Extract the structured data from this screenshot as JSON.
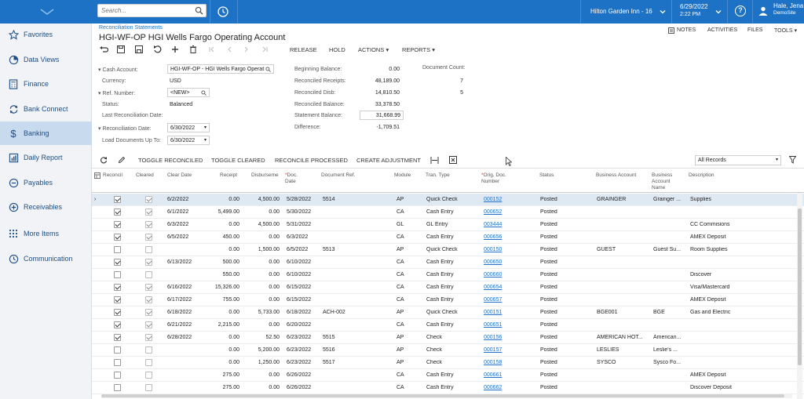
{
  "topbar": {
    "search_placeholder": "Search...",
    "branch": "Hilton Garden Inn - 16",
    "date": "6/29/2022",
    "time": "2:22 PM",
    "user_name": "Hale, Jena",
    "company": "DemoSite"
  },
  "sidebar": {
    "items": [
      {
        "label": "Favorites",
        "icon": "star-icon"
      },
      {
        "label": "Data Views",
        "icon": "chart-pie-icon"
      },
      {
        "label": "Finance",
        "icon": "calculator-icon"
      },
      {
        "label": "Bank Connect",
        "icon": "sync-icon"
      },
      {
        "label": "Banking",
        "icon": "dollar-icon"
      },
      {
        "label": "Daily Report",
        "icon": "report-icon"
      },
      {
        "label": "Payables",
        "icon": "minus-circle-icon"
      },
      {
        "label": "Receivables",
        "icon": "plus-circle-icon"
      },
      {
        "label": "More Items",
        "icon": "grid-icon"
      },
      {
        "label": "Communication",
        "icon": "clock-icon"
      }
    ]
  },
  "page": {
    "breadcrumb": "Reconciliation Statements",
    "title": "HGI-WF-OP HGI Wells Fargo Operating Account",
    "top_tools": {
      "notes": "NOTES",
      "activities": "ACTIVITIES",
      "files": "FILES",
      "tools": "TOOLS"
    },
    "toolbar": {
      "release": "RELEASE",
      "hold": "HOLD",
      "actions": "ACTIONS",
      "reports": "REPORTS"
    }
  },
  "form": {
    "cash_account_label": "Cash Account:",
    "cash_account_value": "HGI-WF-OP - HGI Wells Fargo Operat",
    "currency_label": "Currency:",
    "currency_value": "USD",
    "ref_number_label": "Ref. Number:",
    "ref_number_value": "<NEW>",
    "status_label": "Status:",
    "status_value": "Balanced",
    "last_recon_label": "Last Reconciliation Date:",
    "recon_date_label": "Reconciliation Date:",
    "recon_date_value": "6/30/2022",
    "load_docs_label": "Load Documents Up To:",
    "load_docs_value": "6/30/2022",
    "beginning_balance_label": "Beginning Balance:",
    "beginning_balance_value": "0.00",
    "reconciled_receipts_label": "Reconciled Receipts:",
    "reconciled_receipts_value": "48,189.00",
    "reconciled_disb_label": "Reconciled Disb:",
    "reconciled_disb_value": "14,810.50",
    "reconciled_balance_label": "Reconciled Balance:",
    "reconciled_balance_value": "33,378.50",
    "statement_balance_label": "Statement Balance:",
    "statement_balance_value": "31,668.99",
    "difference_label": "Difference:",
    "difference_value": "-1,709.51",
    "document_count_label": "Document Count:",
    "document_count_1": "7",
    "document_count_2": "5"
  },
  "grid_toolbar": {
    "toggle_reconciled": "TOGGLE RECONCILED",
    "toggle_cleared": "TOGGLE CLEARED",
    "reconcile_processed": "RECONCILE PROCESSED",
    "create_adjustment": "CREATE ADJUSTMENT",
    "filter_value": "All Records"
  },
  "grid": {
    "headers": {
      "reconcil": "Reconcil",
      "cleared": "Cleared",
      "clear_date": "Clear Date",
      "receipt": "Receipt",
      "disburseme": "Disburseme",
      "doc_date": "Doc. Date",
      "document_ref": "Document Ref.",
      "module": "Module",
      "tran_type": "Tran. Type",
      "orig_doc_number": "Orig. Doc. Number",
      "status": "Status",
      "business_account": "Business Account",
      "business_account_name": "Business Account Name",
      "description": "Description"
    },
    "rows": [
      {
        "rec": true,
        "clr": true,
        "clear_date": "6/2/2022",
        "receipt": "0.00",
        "disb": "4,500.00",
        "doc_date": "5/28/2022",
        "doc_ref": "5514",
        "module": "AP",
        "tran": "Quick Check",
        "orig": "000152",
        "status": "Posted",
        "bacct": "GRAINGER",
        "bname": "Grainger ...",
        "desc": "Supplies"
      },
      {
        "rec": true,
        "clr": true,
        "clear_date": "6/1/2022",
        "receipt": "5,499.00",
        "disb": "0.00",
        "doc_date": "5/30/2022",
        "doc_ref": "",
        "module": "CA",
        "tran": "Cash Entry",
        "orig": "000652",
        "status": "Posted",
        "bacct": "",
        "bname": "",
        "desc": ""
      },
      {
        "rec": true,
        "clr": true,
        "clear_date": "6/3/2022",
        "receipt": "0.00",
        "disb": "4,500.00",
        "doc_date": "5/31/2022",
        "doc_ref": "",
        "module": "GL",
        "tran": "GL Entry",
        "orig": "003444",
        "status": "Posted",
        "bacct": "",
        "bname": "",
        "desc": "CC Commisions"
      },
      {
        "rec": true,
        "clr": true,
        "clear_date": "6/5/2022",
        "receipt": "450.00",
        "disb": "0.00",
        "doc_date": "6/3/2022",
        "doc_ref": "",
        "module": "CA",
        "tran": "Cash Entry",
        "orig": "000656",
        "status": "Posted",
        "bacct": "",
        "bname": "",
        "desc": "AMEX Deposit"
      },
      {
        "rec": false,
        "clr": false,
        "clear_date": "",
        "receipt": "0.00",
        "disb": "1,500.00",
        "doc_date": "6/5/2022",
        "doc_ref": "5513",
        "module": "AP",
        "tran": "Quick Check",
        "orig": "000150",
        "status": "Posted",
        "bacct": "GUEST",
        "bname": "Guest Su...",
        "desc": "Room Supplies"
      },
      {
        "rec": true,
        "clr": true,
        "clear_date": "6/13/2022",
        "receipt": "500.00",
        "disb": "0.00",
        "doc_date": "6/10/2022",
        "doc_ref": "",
        "module": "CA",
        "tran": "Cash Entry",
        "orig": "000650",
        "status": "Posted",
        "bacct": "",
        "bname": "",
        "desc": ""
      },
      {
        "rec": false,
        "clr": false,
        "clear_date": "",
        "receipt": "550.00",
        "disb": "0.00",
        "doc_date": "6/10/2022",
        "doc_ref": "",
        "module": "CA",
        "tran": "Cash Entry",
        "orig": "000660",
        "status": "Posted",
        "bacct": "",
        "bname": "",
        "desc": "Discover"
      },
      {
        "rec": true,
        "clr": true,
        "clear_date": "6/16/2022",
        "receipt": "15,326.00",
        "disb": "0.00",
        "doc_date": "6/15/2022",
        "doc_ref": "",
        "module": "CA",
        "tran": "Cash Entry",
        "orig": "000654",
        "status": "Posted",
        "bacct": "",
        "bname": "",
        "desc": "Visa/Mastercard"
      },
      {
        "rec": true,
        "clr": true,
        "clear_date": "6/17/2022",
        "receipt": "755.00",
        "disb": "0.00",
        "doc_date": "6/15/2022",
        "doc_ref": "",
        "module": "CA",
        "tran": "Cash Entry",
        "orig": "000657",
        "status": "Posted",
        "bacct": "",
        "bname": "",
        "desc": "AMEX Deposit"
      },
      {
        "rec": true,
        "clr": true,
        "clear_date": "6/18/2022",
        "receipt": "0.00",
        "disb": "5,733.00",
        "doc_date": "6/18/2022",
        "doc_ref": "ACH-002",
        "module": "AP",
        "tran": "Quick Check",
        "orig": "000151",
        "status": "Posted",
        "bacct": "BGE001",
        "bname": "BGE",
        "desc": "Gas and Electric"
      },
      {
        "rec": true,
        "clr": true,
        "clear_date": "6/21/2022",
        "receipt": "2,215.00",
        "disb": "0.00",
        "doc_date": "6/20/2022",
        "doc_ref": "",
        "module": "CA",
        "tran": "Cash Entry",
        "orig": "000651",
        "status": "Posted",
        "bacct": "",
        "bname": "",
        "desc": ""
      },
      {
        "rec": true,
        "clr": true,
        "clear_date": "6/28/2022",
        "receipt": "0.00",
        "disb": "52.50",
        "doc_date": "6/23/2022",
        "doc_ref": "5515",
        "module": "AP",
        "tran": "Check",
        "orig": "000156",
        "status": "Posted",
        "bacct": "AMERICAN HOT...",
        "bname": "American...",
        "desc": ""
      },
      {
        "rec": false,
        "clr": false,
        "clear_date": "",
        "receipt": "0.00",
        "disb": "5,200.00",
        "doc_date": "6/23/2022",
        "doc_ref": "5516",
        "module": "AP",
        "tran": "Check",
        "orig": "000157",
        "status": "Posted",
        "bacct": "LESLIES",
        "bname": "Leslie's ...",
        "desc": ""
      },
      {
        "rec": false,
        "clr": false,
        "clear_date": "",
        "receipt": "0.00",
        "disb": "1,250.00",
        "doc_date": "6/23/2022",
        "doc_ref": "5517",
        "module": "AP",
        "tran": "Check",
        "orig": "000158",
        "status": "Posted",
        "bacct": "SYSCO",
        "bname": "Sysco Fo...",
        "desc": ""
      },
      {
        "rec": false,
        "clr": false,
        "clear_date": "",
        "receipt": "275.00",
        "disb": "0.00",
        "doc_date": "6/26/2022",
        "doc_ref": "",
        "module": "CA",
        "tran": "Cash Entry",
        "orig": "000661",
        "status": "Posted",
        "bacct": "",
        "bname": "",
        "desc": "AMEX Deposit"
      },
      {
        "rec": false,
        "clr": false,
        "clear_date": "",
        "receipt": "275.00",
        "disb": "0.00",
        "doc_date": "6/26/2022",
        "doc_ref": "",
        "module": "CA",
        "tran": "Cash Entry",
        "orig": "000662",
        "status": "Posted",
        "bacct": "",
        "bname": "",
        "desc": "Discover Deposit"
      }
    ]
  }
}
